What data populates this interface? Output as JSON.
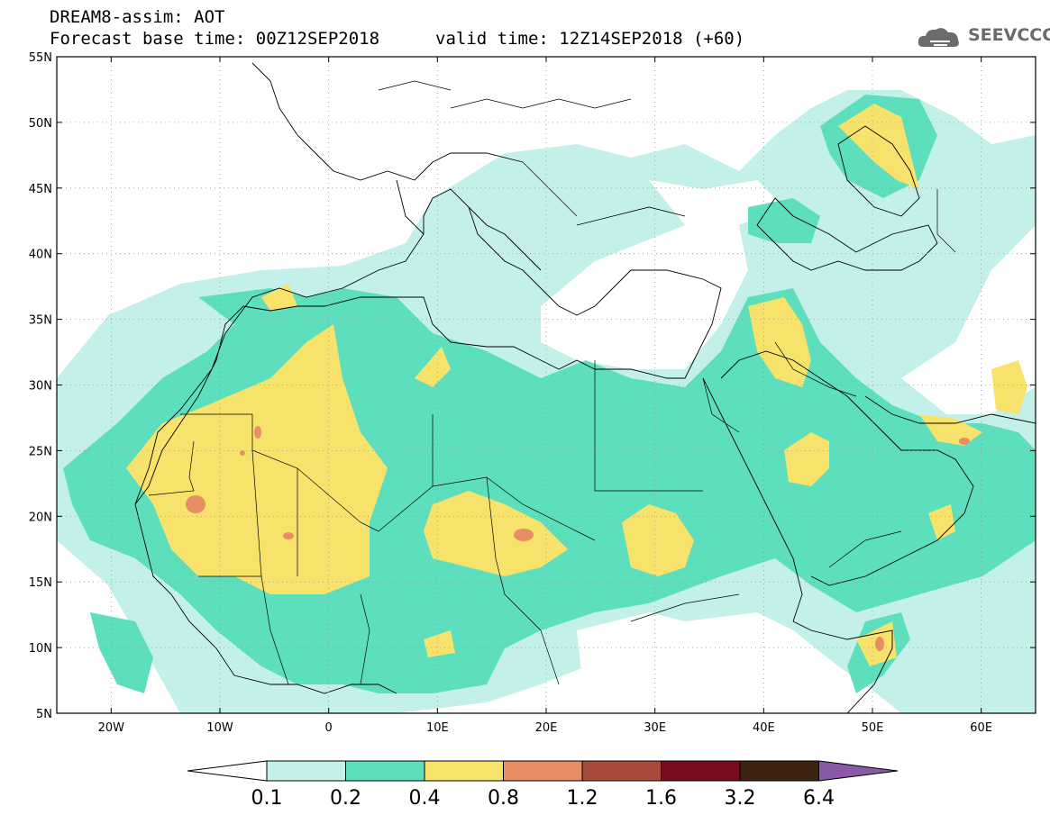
{
  "header": {
    "line1": "DREAM8-assim: AOT",
    "line2": "Forecast base time: 00Z12SEP2018",
    "valid_time": "valid time: 12Z14SEP2018 (+60)",
    "logo_text": "SEEVCCC"
  },
  "map": {
    "lat_labels": [
      "55N",
      "50N",
      "45N",
      "40N",
      "35N",
      "30N",
      "25N",
      "20N",
      "15N",
      "10N",
      "5N"
    ],
    "lon_labels": [
      "20W",
      "10W",
      "0",
      "10E",
      "20E",
      "30E",
      "40E",
      "50E",
      "60E"
    ],
    "lat_range": [
      5,
      55
    ],
    "lon_range": [
      -25,
      65
    ],
    "grid": true,
    "grid_style": "dotted"
  },
  "colorbar": {
    "labels": [
      "0.1",
      "0.2",
      "0.4",
      "0.8",
      "1.2",
      "1.6",
      "3.2",
      "6.4"
    ],
    "colors": [
      "#ffffff",
      "#c4f0ea",
      "#5ddfbd",
      "#f7e36c",
      "#e88e64",
      "#a94b3c",
      "#7a0a1f",
      "#3d2210",
      "#8a5aa6"
    ]
  },
  "palette": {
    "c1": "#c4f0ea",
    "c2": "#5ddfbd",
    "c3": "#f7e36c",
    "c4": "#e88e64"
  }
}
